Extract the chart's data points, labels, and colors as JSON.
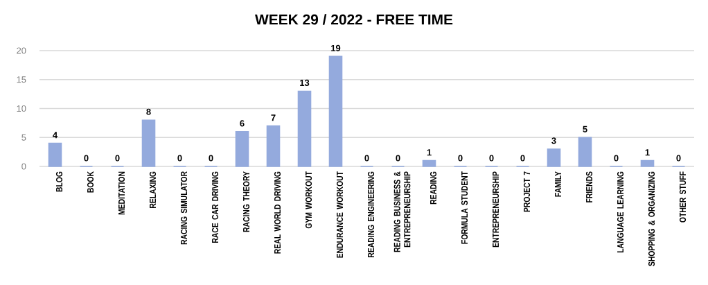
{
  "chart_data": {
    "type": "bar",
    "title": "WEEK 29 / 2022 - FREE TIME",
    "categories": [
      "BLOG",
      "BOOK",
      "MEDITATION",
      "RELAXING",
      "RACING SIMULATOR",
      "RACE CAR DRIVING",
      "RACING THEORY",
      "REAL WORLD DRIVING",
      "GYM WORKOUT",
      "ENDURANCE WORKOUT",
      "READING ENGINEERING",
      "READING BUSINESS & ENTREPRENEURSHIP",
      "READING",
      "FORMULA STUDENT",
      "ENTREPRENEURSHIP",
      "PROJECT 7",
      "FAMILY",
      "FRIENDS",
      "LANGUAGE LEARNING",
      "SHOPPING & ORGANIZING",
      "OTHER STUFF"
    ],
    "values": [
      4,
      0,
      0,
      8,
      0,
      0,
      6,
      7,
      13,
      19,
      0,
      0,
      1,
      0,
      0,
      0,
      3,
      5,
      0,
      1,
      0
    ],
    "color": "#94aadd",
    "ylim": [
      0,
      20
    ],
    "yticks": [
      0,
      5,
      10,
      15,
      20
    ],
    "grid": "y",
    "data_labels": true
  }
}
